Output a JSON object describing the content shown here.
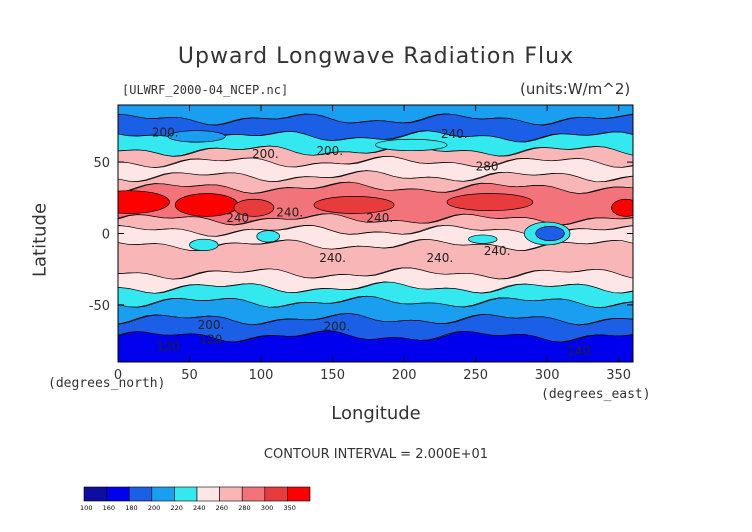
{
  "chart_data": {
    "type": "heatmap",
    "title": "Upward Longwave Radiation Flux",
    "source_label": "[ULWRF_2000-04_NCEP.nc]",
    "units_label": "(units:W/m^2)",
    "xlabel": "Longitude",
    "xlabel_sub": "(degrees_east)",
    "ylabel": "Latitude",
    "ylabel_sub": "(degrees_north)",
    "xlim": [
      0,
      360
    ],
    "ylim": [
      -90,
      90
    ],
    "x_ticks": [
      "0",
      "50",
      "100",
      "150",
      "200",
      "250",
      "300",
      "350"
    ],
    "y_ticks": [
      "50",
      "0",
      "-50"
    ],
    "contour_interval": "CONTOUR INTERVAL = 2.000E+01",
    "contour_labels": [
      "200.",
      "200.",
      "200.",
      "240.",
      "280",
      "240.",
      "240.",
      "240.",
      "240.",
      "240.",
      "240.",
      "200.",
      "200.",
      "120",
      "120",
      "140"
    ],
    "colorbar": {
      "levels": [
        "100",
        "160",
        "180",
        "200",
        "220",
        "240",
        "260",
        "280",
        "300",
        "350"
      ],
      "colors": [
        "#0d0d9e",
        "#0000ee",
        "#1a5fe6",
        "#1a9ff0",
        "#33e8ee",
        "#ffe6e6",
        "#f9b6b6",
        "#f2747a",
        "#e83c3c",
        "#ff0000"
      ]
    }
  }
}
